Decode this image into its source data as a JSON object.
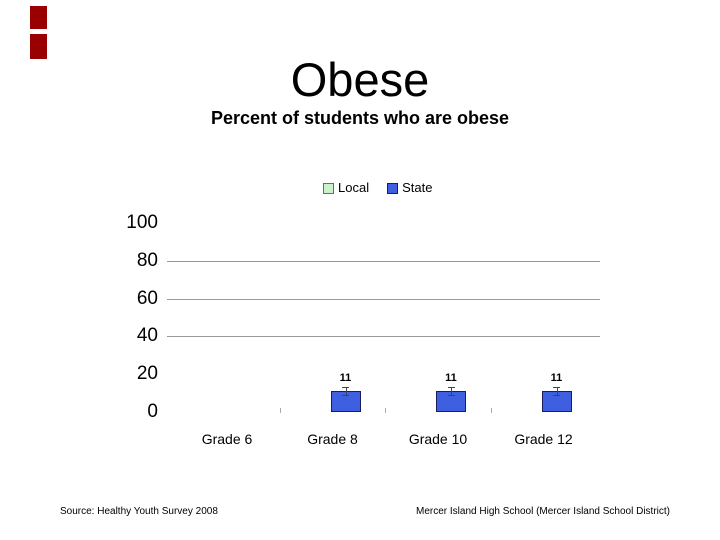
{
  "slide": {
    "title": "Obese",
    "subtitle": "Percent of students who are obese",
    "footer_left": "Source: Healthy Youth Survey 2008",
    "footer_right": "Mercer Island High School (Mercer Island School District)",
    "accent_color": "#990000"
  },
  "chart_data": {
    "type": "bar",
    "title": "Percent of students who are obese",
    "categories": [
      "Grade 6",
      "Grade 8",
      "Grade 10",
      "Grade 12"
    ],
    "series": [
      {
        "name": "Local",
        "color": "#ccf2cc",
        "border": "#567a56",
        "values": [
          null,
          null,
          null,
          null
        ]
      },
      {
        "name": "State",
        "color": "#3e60e0",
        "border": "#1b1b60",
        "values": [
          null,
          11,
          11,
          11
        ]
      }
    ],
    "error_bars": {
      "series": "State",
      "minus": 2,
      "plus": 2,
      "color": "#444444"
    },
    "xlabel": "",
    "ylabel": "",
    "ylim": [
      0,
      100
    ],
    "yticks": [
      0,
      20,
      40,
      60,
      80,
      100
    ],
    "gridlines_at": [
      40,
      60,
      80
    ],
    "grid": true,
    "legend_position": "top-center",
    "gridline_color": "#999999",
    "tick_color": "#aaaaaa"
  }
}
